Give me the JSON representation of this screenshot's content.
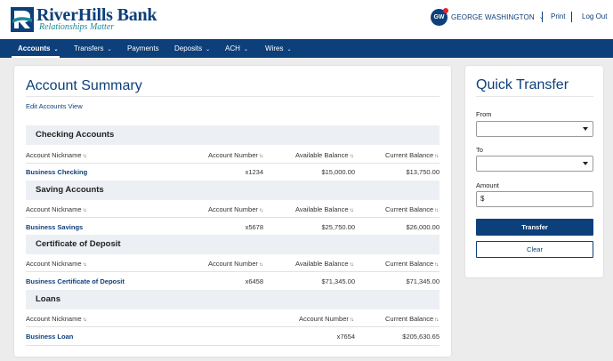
{
  "brand": {
    "name": "RiverHills Bank",
    "tagline": "Relationships Matter",
    "colors": {
      "primary": "#0d3f7a",
      "accent": "#1a8a9a",
      "alert": "#e0242c"
    }
  },
  "header": {
    "user_initials": "GW",
    "user_name": "GEORGE WASHINGTON",
    "print_label": "Print",
    "logout_label": "Log Out"
  },
  "nav": {
    "items": [
      {
        "label": "Accounts",
        "dropdown": true,
        "active": true
      },
      {
        "label": "Transfers",
        "dropdown": true
      },
      {
        "label": "Payments",
        "dropdown": false
      },
      {
        "label": "Deposits",
        "dropdown": true
      },
      {
        "label": "ACH",
        "dropdown": true
      },
      {
        "label": "Wires",
        "dropdown": true
      }
    ]
  },
  "summary": {
    "title": "Account Summary",
    "edit_link": "Edit Accounts View",
    "columns": {
      "nickname": "Account Nickname",
      "number": "Account Number",
      "available": "Available Balance",
      "current": "Current Balance"
    },
    "sections": [
      {
        "title": "Checking Accounts",
        "rows": [
          {
            "nickname": "Business Checking",
            "number": "x1234",
            "available": "$15,000.00",
            "current": "$13,750.00"
          }
        ]
      },
      {
        "title": "Saving Accounts",
        "rows": [
          {
            "nickname": "Business Savings",
            "number": "x5678",
            "available": "$25,750.00",
            "current": "$26,000.00"
          }
        ]
      },
      {
        "title": "Certificate of Deposit",
        "rows": [
          {
            "nickname": "Business Certificate of Deposit",
            "number": "x6458",
            "available": "$71,345.00",
            "current": "$71,345.00"
          }
        ]
      },
      {
        "title": "Loans",
        "rows": [
          {
            "nickname": "Business Loan",
            "number": "x7654",
            "current": "$205,630.65"
          }
        ]
      }
    ]
  },
  "quick_transfer": {
    "title": "Quick Transfer",
    "from_label": "From",
    "from_value": "",
    "to_label": "To",
    "to_value": "",
    "amount_label": "Amount",
    "amount_value": "$",
    "transfer_button": "Transfer",
    "clear_button": "Clear"
  }
}
